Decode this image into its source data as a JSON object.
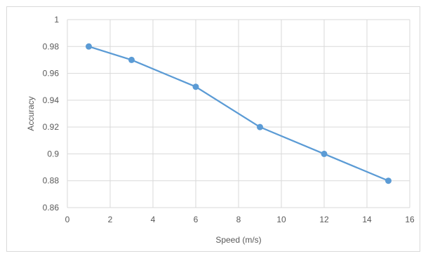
{
  "chart_data": {
    "type": "line",
    "title": "",
    "xlabel": "Speed (m/s)",
    "ylabel": "Accuracy",
    "xlim": [
      0,
      16
    ],
    "ylim": [
      0.86,
      1
    ],
    "x_ticks": [
      0,
      2,
      4,
      6,
      8,
      10,
      12,
      14,
      16
    ],
    "x_tick_labels": [
      "0",
      "2",
      "4",
      "6",
      "8",
      "10",
      "12",
      "14",
      "16"
    ],
    "y_ticks": [
      0.86,
      0.88,
      0.9,
      0.92,
      0.94,
      0.96,
      0.98,
      1
    ],
    "y_tick_labels": [
      "0.86",
      "0.88",
      "0.9",
      "0.92",
      "0.94",
      "0.96",
      "0.98",
      "1"
    ],
    "grid": true,
    "legend": "none",
    "series": [
      {
        "x": [
          1,
          3,
          6,
          9,
          12,
          15
        ],
        "y": [
          0.98,
          0.97,
          0.95,
          0.92,
          0.9,
          0.88
        ]
      }
    ],
    "colors": {
      "series": "#5b9bd5",
      "grid": "#d9d9d9",
      "text": "#595959"
    }
  }
}
